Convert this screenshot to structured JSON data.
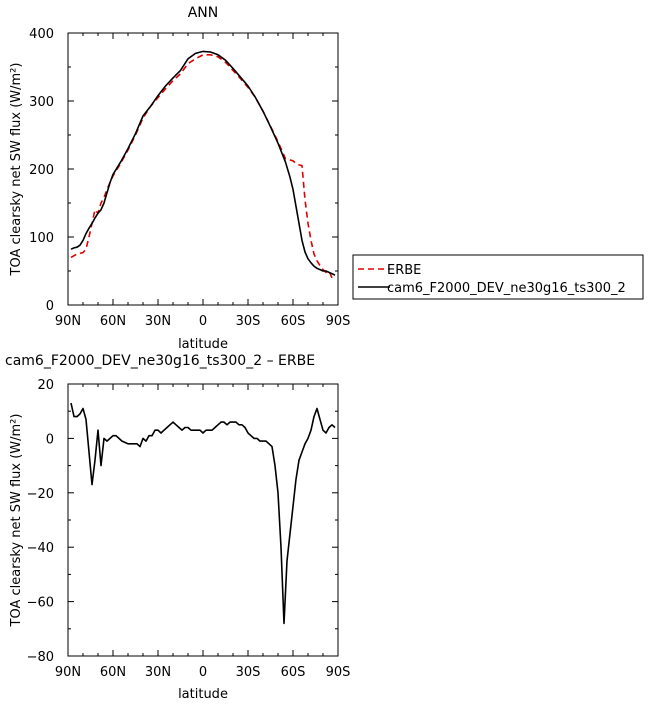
{
  "chart_data": [
    {
      "type": "line",
      "title": "ANN",
      "xlabel": "latitude",
      "ylabel": "TOA clearsky net SW flux (W/m²)",
      "xlim": [
        -90,
        90
      ],
      "ylim": [
        0,
        400
      ],
      "x_ticks": [
        -90,
        -60,
        -30,
        0,
        30,
        60,
        90
      ],
      "x_tick_labels": [
        "90N",
        "60N",
        "30N",
        "0",
        "30S",
        "60S",
        "90S"
      ],
      "y_ticks": [
        0,
        100,
        200,
        300,
        400
      ],
      "y_tick_labels": [
        "0",
        "100",
        "200",
        "300",
        "400"
      ],
      "grid": false,
      "legend_position": "right",
      "series": [
        {
          "name": "ERBE",
          "color": "#e00000",
          "style": "dashed",
          "x": [
            -88,
            -84,
            -80,
            -78,
            -76,
            -74,
            -72,
            -70,
            -68,
            -66,
            -64,
            -62,
            -60,
            -55,
            -50,
            -45,
            -40,
            -35,
            -30,
            -25,
            -20,
            -15,
            -10,
            -5,
            0,
            5,
            10,
            15,
            20,
            25,
            30,
            35,
            40,
            45,
            50,
            55,
            60,
            62,
            64,
            66,
            68,
            70,
            72,
            74,
            76,
            78,
            80,
            82,
            84,
            86,
            88
          ],
          "y": [
            70,
            75,
            77,
            82,
            100,
            120,
            140,
            135,
            150,
            158,
            170,
            180,
            190,
            208,
            228,
            250,
            275,
            292,
            305,
            318,
            330,
            340,
            355,
            362,
            368,
            368,
            365,
            357,
            345,
            333,
            320,
            305,
            285,
            263,
            240,
            215,
            212,
            208,
            206,
            205,
            155,
            120,
            95,
            75,
            65,
            58,
            52,
            48,
            50,
            40,
            43
          ]
        },
        {
          "name": "cam6_F2000_DEV_ne30g16_ts300_2",
          "color": "#000000",
          "style": "solid",
          "x": [
            -88,
            -86,
            -84,
            -82,
            -80,
            -78,
            -76,
            -74,
            -72,
            -70,
            -68,
            -66,
            -64,
            -62,
            -60,
            -55,
            -50,
            -45,
            -40,
            -35,
            -30,
            -25,
            -20,
            -15,
            -10,
            -5,
            0,
            5,
            10,
            15,
            20,
            25,
            30,
            35,
            40,
            45,
            50,
            55,
            58,
            60,
            62,
            64,
            66,
            68,
            70,
            72,
            74,
            76,
            78,
            80,
            82,
            84,
            86,
            88
          ],
          "y": [
            82,
            84,
            85,
            88,
            95,
            105,
            113,
            120,
            128,
            135,
            140,
            150,
            165,
            180,
            192,
            210,
            230,
            252,
            278,
            292,
            308,
            322,
            334,
            345,
            362,
            370,
            373,
            372,
            368,
            360,
            348,
            335,
            322,
            305,
            285,
            262,
            238,
            210,
            188,
            170,
            145,
            120,
            95,
            78,
            68,
            62,
            57,
            54,
            52,
            50,
            50,
            48,
            46,
            44
          ]
        }
      ]
    },
    {
      "type": "line",
      "title": "cam6_F2000_DEV_ne30g16_ts300_2 – ERBE",
      "xlabel": "latitude",
      "ylabel": "TOA clearsky net SW flux (W/m²)",
      "xlim": [
        -90,
        90
      ],
      "ylim": [
        -80,
        20
      ],
      "x_ticks": [
        -90,
        -60,
        -30,
        0,
        30,
        60,
        90
      ],
      "x_tick_labels": [
        "90N",
        "60N",
        "30N",
        "0",
        "30S",
        "60S",
        "90S"
      ],
      "y_ticks": [
        -80,
        -60,
        -40,
        -20,
        0,
        20
      ],
      "y_tick_labels": [
        "−80",
        "−60",
        "−40",
        "−20",
        "0",
        "20"
      ],
      "grid": false,
      "series": [
        {
          "color": "#000000",
          "style": "solid",
          "x": [
            -88,
            -86,
            -84,
            -82,
            -80,
            -78,
            -76,
            -74,
            -72,
            -70,
            -68,
            -66,
            -64,
            -62,
            -60,
            -58,
            -56,
            -54,
            -50,
            -48,
            -46,
            -44,
            -42,
            -40,
            -38,
            -36,
            -34,
            -32,
            -30,
            -28,
            -26,
            -24,
            -22,
            -20,
            -18,
            -16,
            -14,
            -12,
            -10,
            -8,
            -6,
            -4,
            -2,
            0,
            2,
            4,
            6,
            8,
            10,
            12,
            14,
            16,
            18,
            20,
            22,
            24,
            26,
            28,
            30,
            32,
            34,
            36,
            38,
            40,
            42,
            44,
            46,
            48,
            50,
            52,
            54,
            56,
            58,
            60,
            62,
            64,
            66,
            68,
            70,
            72,
            74,
            76,
            78,
            80,
            82,
            84,
            86,
            88
          ],
          "y": [
            13,
            8,
            8,
            9,
            11,
            7,
            -5,
            -17,
            -8,
            3,
            -10,
            0,
            -1,
            0,
            1,
            1,
            0,
            -1,
            -2,
            -2,
            -2,
            -2,
            -3,
            0,
            -1,
            1,
            1,
            3,
            3,
            2,
            3,
            4,
            5,
            6,
            5,
            4,
            3,
            4,
            4,
            3,
            3,
            3,
            3,
            2,
            3,
            3,
            3,
            4,
            5,
            6,
            6,
            5,
            6,
            6,
            6,
            5,
            5,
            4,
            2,
            1,
            0,
            0,
            -1,
            -1,
            -1,
            -2,
            -3,
            -10,
            -20,
            -40,
            -68,
            -45,
            -35,
            -25,
            -15,
            -8,
            -5,
            -2,
            0,
            3,
            8,
            11,
            7,
            3,
            2,
            4,
            5,
            4
          ],
          "x_note": "",
          "y_note": ""
        }
      ]
    }
  ]
}
